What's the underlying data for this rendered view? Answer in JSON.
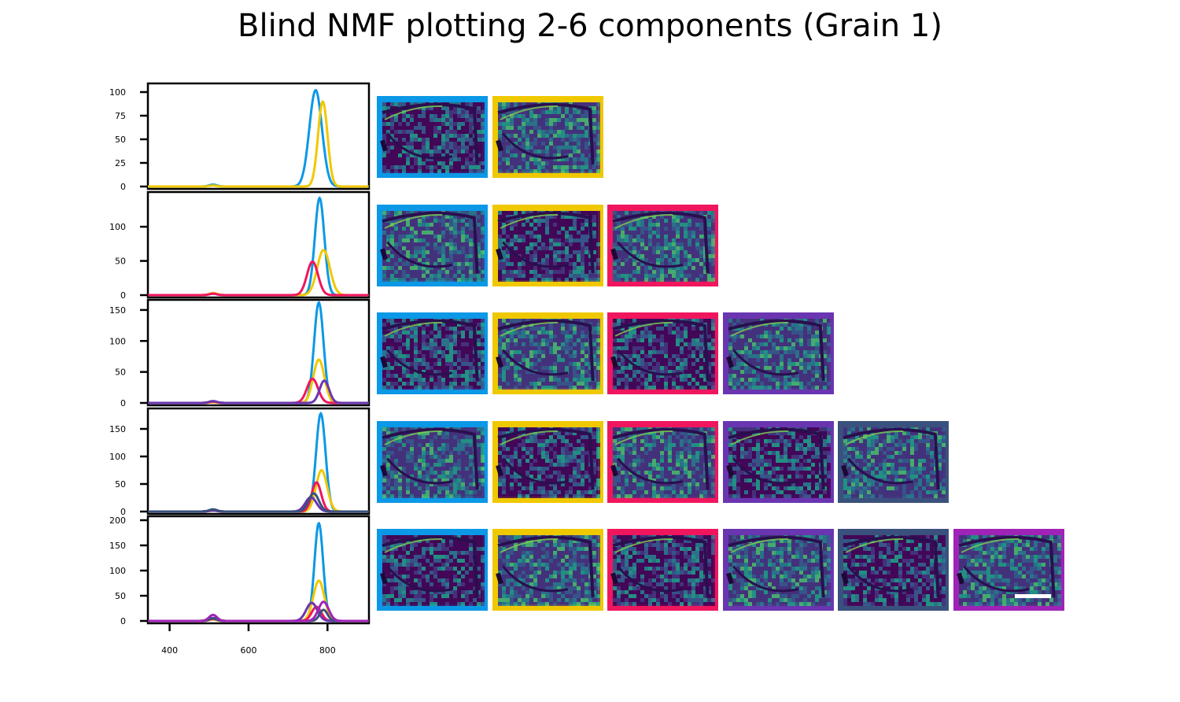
{
  "title": "Blind NMF plotting 2-6 components (Grain 1)",
  "colors": [
    "#0b98e6",
    "#f0c800",
    "#f0165e",
    "#6a35b0",
    "#3a517d",
    "#a023b8"
  ],
  "chart_data": [
    {
      "type": "line",
      "x_domain": [
        345,
        905
      ],
      "ylim": [
        0,
        105
      ],
      "yticks": [
        0,
        25,
        50,
        75,
        100
      ],
      "xticks": [
        400,
        600,
        800
      ],
      "series": [
        {
          "color": "#0b98e6",
          "peak_x": 770,
          "peak_y": 102,
          "width": 16,
          "bump_x": 510,
          "bump_y": 2
        },
        {
          "color": "#f0c800",
          "peak_x": 788,
          "peak_y": 90,
          "width": 12,
          "bump_x": 510,
          "bump_y": 1
        }
      ]
    },
    {
      "type": "line",
      "x_domain": [
        345,
        905
      ],
      "ylim": [
        0,
        145
      ],
      "yticks": [
        0,
        50,
        100
      ],
      "xticks": [
        400,
        600,
        800
      ],
      "series": [
        {
          "color": "#0b98e6",
          "peak_x": 780,
          "peak_y": 142,
          "width": 12,
          "bump_x": 510,
          "bump_y": 2
        },
        {
          "color": "#f0c800",
          "peak_x": 790,
          "peak_y": 66,
          "width": 16,
          "bump_x": 510,
          "bump_y": 3
        },
        {
          "color": "#f0165e",
          "peak_x": 762,
          "peak_y": 49,
          "width": 14,
          "bump_x": 510,
          "bump_y": 2
        }
      ]
    },
    {
      "type": "line",
      "x_domain": [
        345,
        905
      ],
      "ylim": [
        0,
        160
      ],
      "yticks": [
        0,
        50,
        100,
        150
      ],
      "xticks": [
        400,
        600,
        800
      ],
      "series": [
        {
          "color": "#0b98e6",
          "peak_x": 778,
          "peak_y": 162,
          "width": 12,
          "bump_x": 510,
          "bump_y": 2
        },
        {
          "color": "#f0c800",
          "peak_x": 778,
          "peak_y": 70,
          "width": 14,
          "bump_x": 510,
          "bump_y": 1
        },
        {
          "color": "#f0165e",
          "peak_x": 762,
          "peak_y": 39,
          "width": 14,
          "bump_x": 510,
          "bump_y": 2
        },
        {
          "color": "#6a35b0",
          "peak_x": 792,
          "peak_y": 36,
          "width": 12,
          "bump_x": 510,
          "bump_y": 3
        }
      ]
    },
    {
      "type": "line",
      "x_domain": [
        345,
        905
      ],
      "ylim": [
        0,
        180
      ],
      "yticks": [
        0,
        50,
        100,
        150
      ],
      "xticks": [
        400,
        600,
        800
      ],
      "series": [
        {
          "color": "#0b98e6",
          "peak_x": 783,
          "peak_y": 178,
          "width": 12,
          "bump_x": 510,
          "bump_y": 2
        },
        {
          "color": "#f0c800",
          "peak_x": 785,
          "peak_y": 75,
          "width": 14,
          "bump_x": 510,
          "bump_y": 2
        },
        {
          "color": "#f0165e",
          "peak_x": 772,
          "peak_y": 53,
          "width": 12,
          "bump_x": 510,
          "bump_y": 2
        },
        {
          "color": "#6a35b0",
          "peak_x": 758,
          "peak_y": 26,
          "width": 14,
          "bump_x": 510,
          "bump_y": 2
        },
        {
          "color": "#3a517d",
          "peak_x": 765,
          "peak_y": 33,
          "width": 13,
          "bump_x": 510,
          "bump_y": 4
        }
      ]
    },
    {
      "type": "line",
      "x_domain": [
        345,
        905
      ],
      "ylim": [
        0,
        200
      ],
      "yticks": [
        0,
        50,
        100,
        150,
        200
      ],
      "xticks": [
        400,
        600,
        800
      ],
      "series": [
        {
          "color": "#0b98e6",
          "peak_x": 778,
          "peak_y": 194,
          "width": 11,
          "bump_x": 510,
          "bump_y": 3
        },
        {
          "color": "#f0c800",
          "peak_x": 778,
          "peak_y": 80,
          "width": 14,
          "bump_x": 510,
          "bump_y": 3
        },
        {
          "color": "#f0165e",
          "peak_x": 772,
          "peak_y": 28,
          "width": 12,
          "bump_x": 510,
          "bump_y": 4
        },
        {
          "color": "#6a35b0",
          "peak_x": 760,
          "peak_y": 36,
          "width": 14,
          "bump_x": 510,
          "bump_y": 6
        },
        {
          "color": "#3a517d",
          "peak_x": 790,
          "peak_y": 22,
          "width": 10,
          "bump_x": 510,
          "bump_y": 5
        },
        {
          "color": "#a023b8",
          "peak_x": 790,
          "peak_y": 38,
          "width": 13,
          "bump_x": 510,
          "bump_y": 12
        }
      ]
    }
  ]
}
